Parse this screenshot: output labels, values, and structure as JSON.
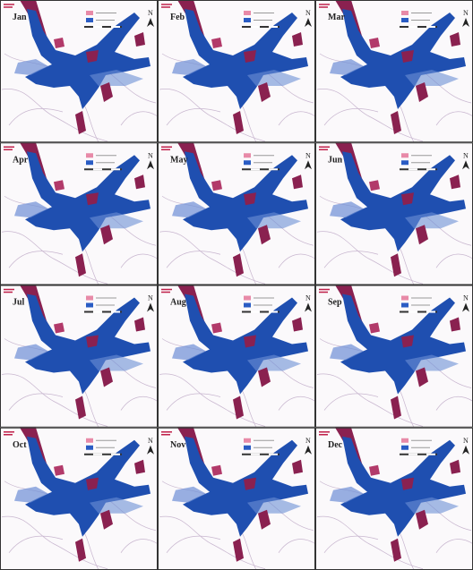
{
  "panels": [
    {
      "month": "Jan",
      "north": "N"
    },
    {
      "month": "Feb",
      "north": "N"
    },
    {
      "month": "Mar",
      "north": "N"
    },
    {
      "month": "Apr",
      "north": "N"
    },
    {
      "month": "May",
      "north": "N"
    },
    {
      "month": "Jun",
      "north": "N"
    },
    {
      "month": "Jul",
      "north": "N"
    },
    {
      "month": "Aug",
      "north": "N"
    },
    {
      "month": "Sep",
      "north": "N"
    },
    {
      "month": "Oct",
      "north": "N"
    },
    {
      "month": "Nov",
      "north": "N"
    },
    {
      "month": "Dec",
      "north": "N"
    }
  ]
}
